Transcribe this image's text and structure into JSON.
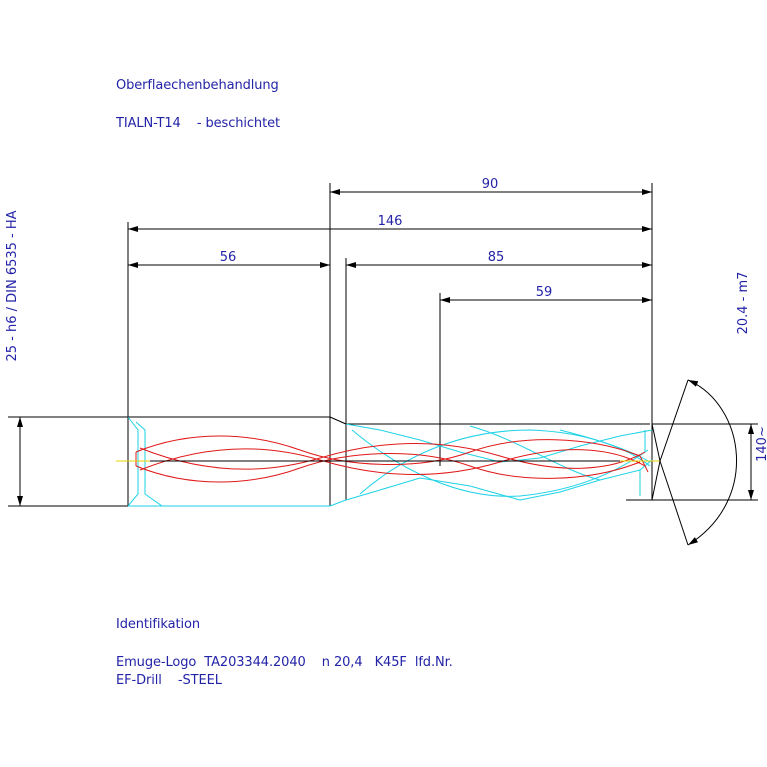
{
  "notes": {
    "surface_heading": "Oberflaechenbehandlung",
    "coating": "TIALN-T14    - beschichtet",
    "id_heading": "Identifikation",
    "id_line1": "Emuge-Logo  TA203344.2040    n 20,4   K45F  lfd.Nr.",
    "id_line2": "EF-Drill    -STEEL"
  },
  "dimensions": {
    "d90": "90",
    "d146": "146",
    "d56": "56",
    "d85": "85",
    "d59": "59",
    "shank": "25 - h6 / DIN 6535 - HA",
    "drill_dia": "20.4 - m7",
    "point_angle": "140~"
  },
  "colors": {
    "outline": "#000000",
    "text": "#2323a8",
    "flute": "#e01818",
    "edges": "#1ed2e6",
    "axis": "#e6d400"
  }
}
